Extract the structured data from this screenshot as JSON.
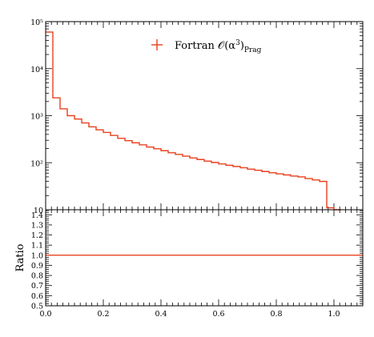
{
  "chart_data": [
    {
      "type": "line",
      "panel": "main",
      "yscale": "log",
      "xlim": [
        0,
        1.1
      ],
      "ylim": [
        10,
        100000
      ],
      "y_tick_labels": [
        "10",
        "10²",
        "10³",
        "10⁴",
        "10⁵"
      ],
      "legend": {
        "position": "top-right",
        "entry": "Fortran 𝒪(α³)Prag",
        "entry_parts": {
          "pre": "Fortran 𝒪(α",
          "sup": "3",
          "post": ")",
          "sub": "Prag"
        }
      },
      "series": [
        {
          "name": "Fortran 𝒪(α³)Prag",
          "color": "#e8401e",
          "style": "step",
          "bin_edges": [
            0,
            0.025,
            0.05,
            0.075,
            0.1,
            0.125,
            0.15,
            0.175,
            0.2,
            0.225,
            0.25,
            0.275,
            0.3,
            0.325,
            0.35,
            0.375,
            0.4,
            0.425,
            0.45,
            0.475,
            0.5,
            0.525,
            0.55,
            0.575,
            0.6,
            0.625,
            0.65,
            0.675,
            0.7,
            0.725,
            0.75,
            0.775,
            0.8,
            0.825,
            0.85,
            0.875,
            0.9,
            0.925,
            0.95,
            0.975,
            1.0,
            1.025
          ],
          "values": [
            60000,
            2400,
            1400,
            1000,
            850,
            700,
            580,
            500,
            440,
            380,
            330,
            295,
            265,
            240,
            215,
            198,
            180,
            163,
            150,
            138,
            126,
            117,
            108,
            101,
            94,
            88,
            83,
            78,
            73,
            69,
            65,
            61,
            58,
            55,
            52,
            50,
            46,
            43,
            40,
            11,
            10
          ]
        }
      ]
    },
    {
      "type": "line",
      "panel": "ratio",
      "ylabel": "Ratio",
      "xlim": [
        0,
        1.1
      ],
      "ylim": [
        0.5,
        1.45
      ],
      "x_ticks": [
        0.0,
        0.2,
        0.4,
        0.6,
        0.8,
        1.0
      ],
      "x_tick_labels": [
        "0.0",
        "0.2",
        "0.4",
        "0.6",
        "0.8",
        "1.0"
      ],
      "y_ticks": [
        0.5,
        0.6,
        0.7,
        0.8,
        0.9,
        1.0,
        1.1,
        1.2,
        1.3,
        1.4
      ],
      "y_tick_labels": [
        "0.5",
        "0.6",
        "0.7",
        "0.8",
        "0.9",
        "1.0",
        "1.1",
        "1.2",
        "1.3",
        "1.4"
      ],
      "series": [
        {
          "color": "#e8401e",
          "x": [
            0,
            1.1
          ],
          "values": [
            1.0,
            1.0
          ]
        }
      ]
    }
  ]
}
